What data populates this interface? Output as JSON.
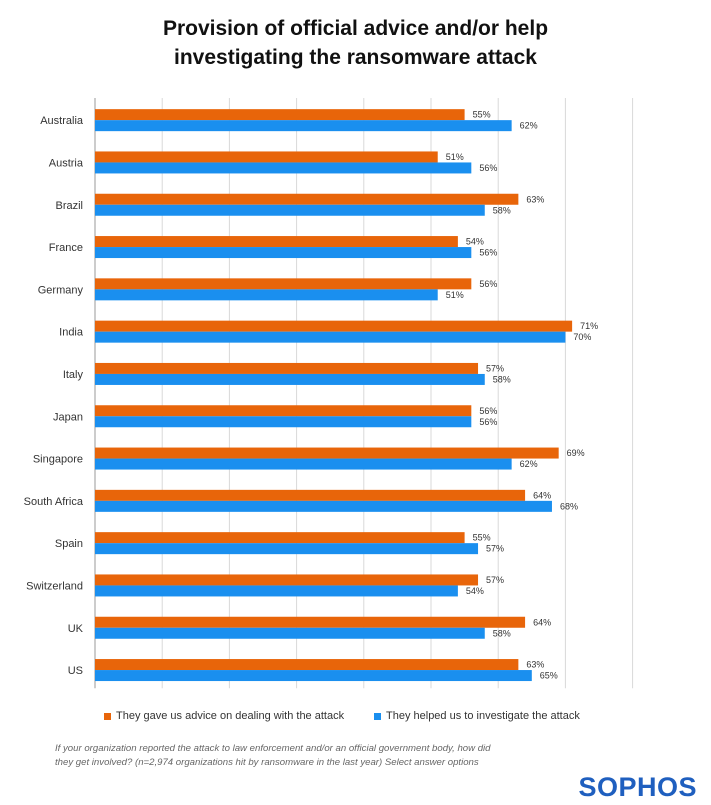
{
  "title_line1": "Provision of official advice and/or help",
  "title_line2": "investigating the ransomware attack",
  "chart_data": {
    "type": "bar",
    "orientation": "horizontal",
    "title": "Provision of official advice and/or help investigating the ransomware attack",
    "categories": [
      "Australia",
      "Austria",
      "Brazil",
      "France",
      "Germany",
      "India",
      "Italy",
      "Japan",
      "Singapore",
      "South Africa",
      "Spain",
      "Switzerland",
      "UK",
      "US"
    ],
    "series": [
      {
        "name": "They gave us advice on dealing with the attack",
        "color": "#e8650a",
        "values": [
          55,
          51,
          63,
          54,
          56,
          71,
          57,
          56,
          69,
          64,
          55,
          57,
          64,
          63
        ]
      },
      {
        "name": "They helped us to investigate the attack",
        "color": "#1a8fef",
        "values": [
          62,
          56,
          58,
          56,
          51,
          70,
          58,
          56,
          62,
          68,
          57,
          54,
          58,
          65
        ]
      }
    ],
    "xlim": [
      0,
      80
    ],
    "grid": true,
    "value_suffix": "%",
    "legend_position": "bottom"
  },
  "legend": {
    "item1": "They gave us advice on dealing with the attack",
    "item2": "They helped us to investigate the attack"
  },
  "footnote_line1": "If your organization reported the attack to law enforcement and/or an official government body, how did",
  "footnote_line2": "they get involved? (n=2,974 organizations hit by ransomware in the last year) Select answer options",
  "logo_text": "SOPHOS"
}
